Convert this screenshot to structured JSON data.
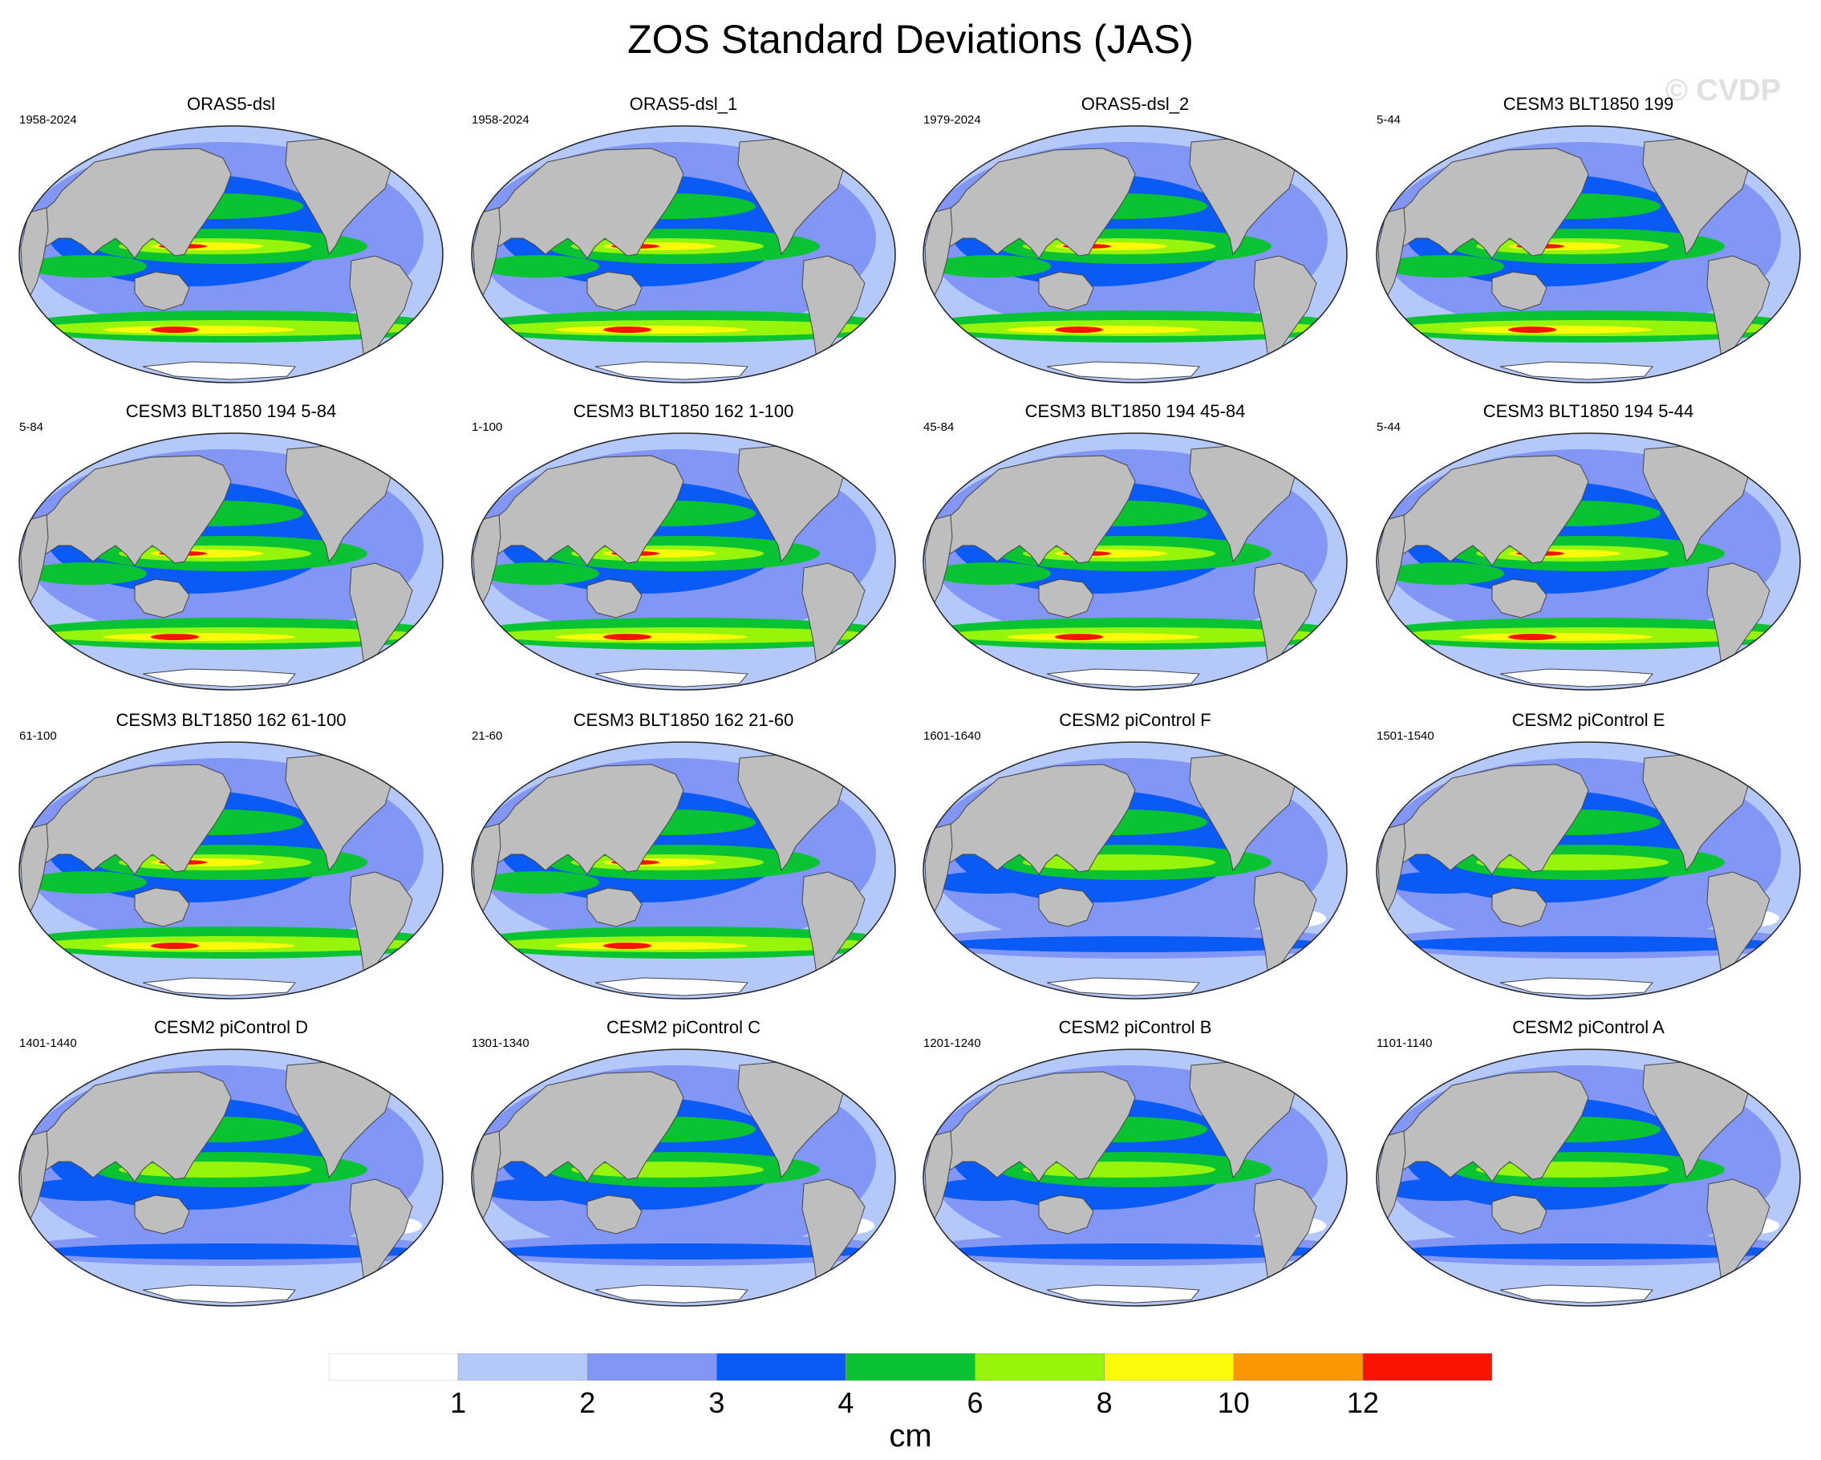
{
  "title": "ZOS Standard Deviations (JAS)",
  "watermark": "© CVDP",
  "panels": [
    {
      "title": "ORAS5-dsl",
      "years": "1958-2024",
      "strength": 1.0
    },
    {
      "title": "ORAS5-dsl_1",
      "years": "1958-2024",
      "strength": 1.0
    },
    {
      "title": "ORAS5-dsl_2",
      "years": "1979-2024",
      "strength": 1.0
    },
    {
      "title": "CESM3 BLT1850 199",
      "years": "5-44",
      "strength": 1.05
    },
    {
      "title": "CESM3 BLT1850 194 5-84",
      "years": "5-84",
      "strength": 1.0
    },
    {
      "title": "CESM3 BLT1850 162 1-100",
      "years": "1-100",
      "strength": 0.95
    },
    {
      "title": "CESM3 BLT1850 194 45-84",
      "years": "45-84",
      "strength": 1.0
    },
    {
      "title": "CESM3 BLT1850 194 5-44",
      "years": "5-44",
      "strength": 1.05
    },
    {
      "title": "CESM3 BLT1850 162 61-100",
      "years": "61-100",
      "strength": 0.95
    },
    {
      "title": "CESM3 BLT1850 162 21-60",
      "years": "21-60",
      "strength": 0.95
    },
    {
      "title": "CESM2 piControl F",
      "years": "1601-1640",
      "strength": 0.55
    },
    {
      "title": "CESM2 piControl E",
      "years": "1501-1540",
      "strength": 0.55
    },
    {
      "title": "CESM2 piControl D",
      "years": "1401-1440",
      "strength": 0.5
    },
    {
      "title": "CESM2 piControl C",
      "years": "1301-1340",
      "strength": 0.5
    },
    {
      "title": "CESM2 piControl B",
      "years": "1201-1240",
      "strength": 0.5
    },
    {
      "title": "CESM2 piControl A",
      "years": "1101-1140",
      "strength": 0.5
    }
  ],
  "colorbar": {
    "units": "cm",
    "labels": [
      "1",
      "2",
      "3",
      "4",
      "6",
      "8",
      "10",
      "12"
    ],
    "colors": [
      "#ffffff",
      "#b4c8fa",
      "#8296f5",
      "#0a5af5",
      "#0ac332",
      "#96f50a",
      "#fafa0a",
      "#fa9600",
      "#fa1400"
    ]
  },
  "land_color": "#bebebe"
}
